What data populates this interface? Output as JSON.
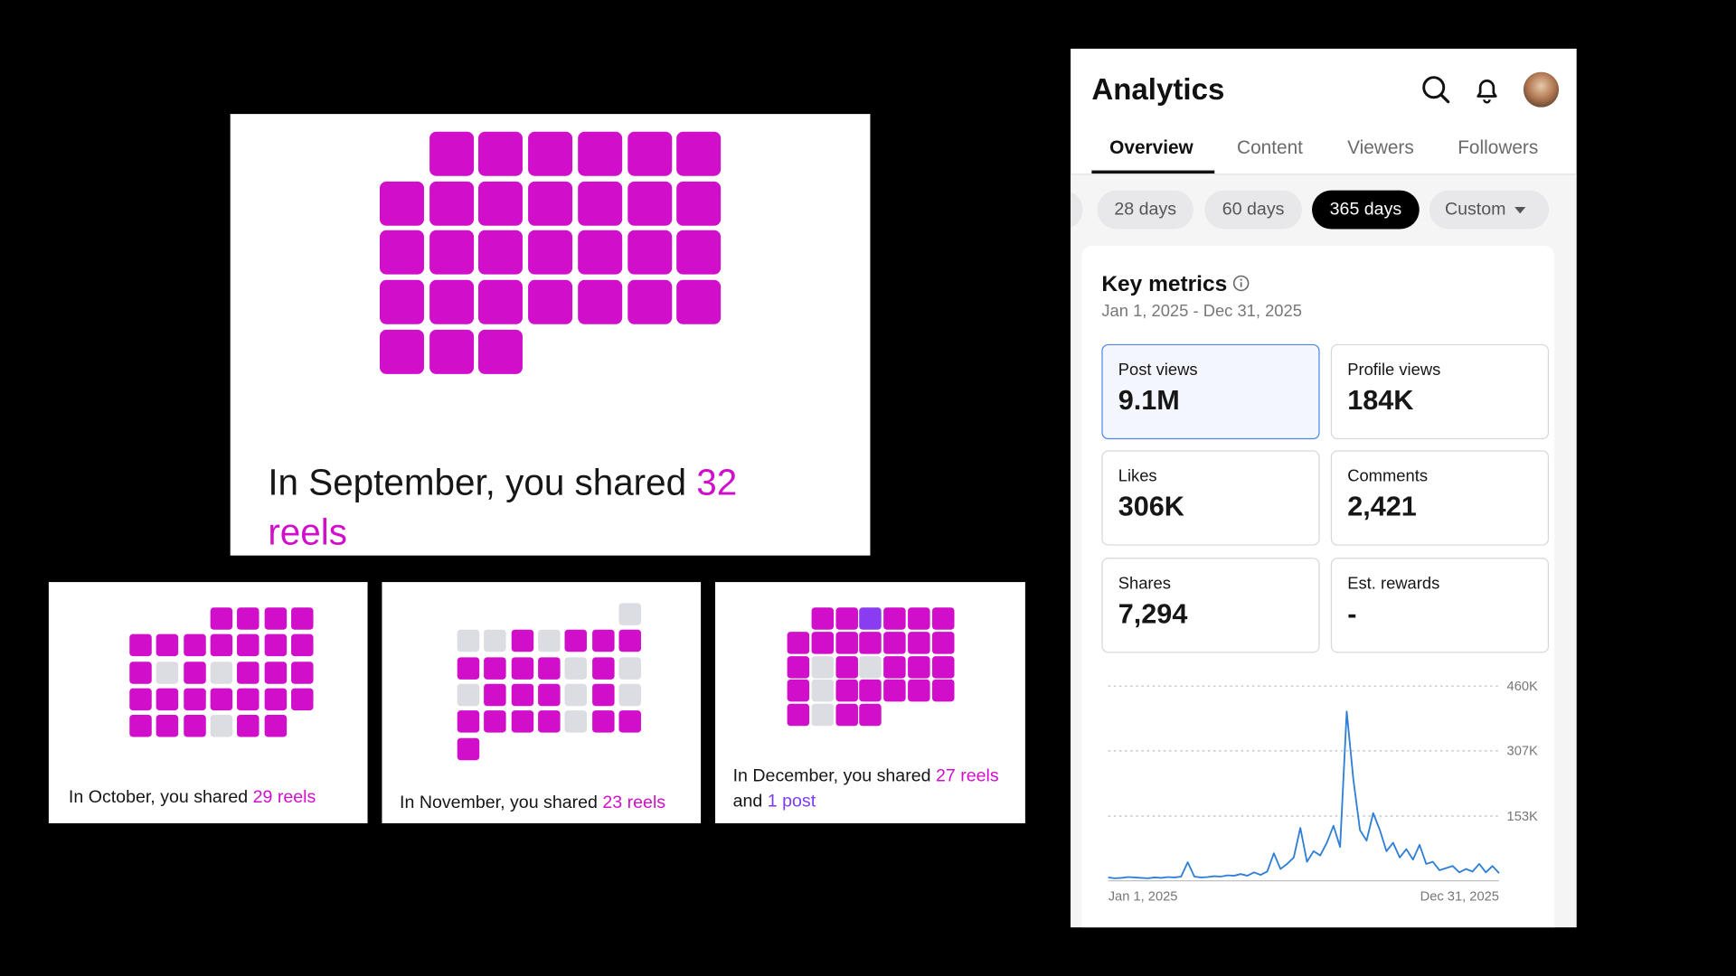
{
  "recap_cards": [
    {
      "text": "In September, you shared ",
      "highlight": "32 reels"
    },
    {
      "text": "In October, you shared ",
      "highlight": "29 reels"
    },
    {
      "text": "In November, you shared ",
      "highlight": "23 reels"
    },
    {
      "text": "In December, you shared ",
      "highlight": "27 reels",
      "text2": "and",
      "highlight2": "1 post"
    }
  ],
  "analytics": {
    "title": "Analytics",
    "tabs": [
      "Overview",
      "Content",
      "Viewers",
      "Followers"
    ],
    "ranges": [
      "28 days",
      "60 days",
      "365 days",
      "Custom"
    ],
    "key_metrics": {
      "title": "Key metrics",
      "date_range": "Jan 1, 2025 - Dec 31, 2025",
      "items": [
        {
          "label": "Post views",
          "value": "9.1M"
        },
        {
          "label": "Profile views",
          "value": "184K"
        },
        {
          "label": "Likes",
          "value": "306K"
        },
        {
          "label": "Comments",
          "value": "2,421"
        },
        {
          "label": "Shares",
          "value": "7,294"
        },
        {
          "label": "Est. rewards",
          "value": "-"
        }
      ]
    }
  },
  "chart_data": {
    "type": "line",
    "color": "#2f7fd6",
    "grid": true,
    "categories": [
      "Jan 1, 2025",
      null,
      null,
      null,
      null,
      null,
      null,
      null,
      null,
      null,
      null,
      null,
      null,
      null,
      null,
      null,
      null,
      null,
      null,
      null,
      null,
      null,
      null,
      null,
      null,
      null,
      null,
      null,
      null,
      null,
      null,
      null,
      null,
      null,
      null,
      null,
      null,
      null,
      null,
      null,
      null,
      null,
      null,
      null,
      null,
      null,
      null,
      null,
      null,
      null,
      null,
      null,
      null,
      null,
      null,
      null,
      null,
      null,
      null,
      "Dec 31, 2025"
    ],
    "values": [
      8000,
      6000,
      7000,
      9000,
      8000,
      7000,
      6000,
      8000,
      7000,
      9000,
      8000,
      10000,
      44000,
      10000,
      8000,
      9000,
      11000,
      10000,
      13000,
      12000,
      16000,
      12000,
      20000,
      14000,
      22000,
      65000,
      28000,
      40000,
      55000,
      125000,
      45000,
      70000,
      60000,
      90000,
      130000,
      80000,
      400000,
      240000,
      120000,
      95000,
      160000,
      120000,
      70000,
      90000,
      55000,
      75000,
      50000,
      85000,
      40000,
      45000,
      25000,
      30000,
      35000,
      20000,
      28000,
      22000,
      40000,
      20000,
      35000,
      18000
    ],
    "ylim": [
      0,
      460000
    ],
    "yticks": [
      {
        "value": 153000,
        "label": "153K"
      },
      {
        "value": 307000,
        "label": "307K"
      },
      {
        "value": 460000,
        "label": "460K"
      }
    ]
  }
}
